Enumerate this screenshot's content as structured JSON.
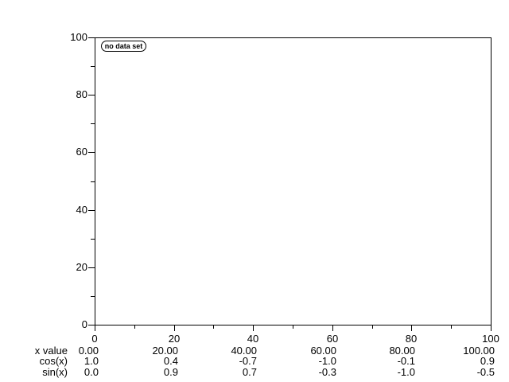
{
  "colors": {
    "foreground": "#000000",
    "background": "#ffffff"
  },
  "chart_data": {
    "type": "line",
    "title": "",
    "xlabel": "",
    "ylabel": "",
    "xlim": [
      0,
      100
    ],
    "ylim": [
      0,
      100
    ],
    "grid": false,
    "series": [],
    "legend": [
      "no data set"
    ],
    "legend_position": "top-left-inside",
    "x_major_ticks": [
      0,
      20,
      40,
      60,
      80,
      100
    ],
    "x_minor_ticks": [
      10,
      30,
      50,
      70,
      90
    ],
    "y_major_ticks": [
      0,
      20,
      40,
      60,
      80,
      100
    ],
    "y_minor_ticks": [
      10,
      30,
      50,
      70,
      90
    ],
    "x_tick_labels": [
      "0",
      "20",
      "40",
      "60",
      "80",
      "100"
    ],
    "y_tick_labels": [
      "0",
      "20",
      "40",
      "60",
      "80",
      "100"
    ],
    "value_table": {
      "columns_x": [
        0,
        20,
        40,
        60,
        80,
        100
      ],
      "rows": [
        {
          "label": "x value",
          "values": [
            "0.00",
            "20.00",
            "40.00",
            "60.00",
            "80.00",
            "100.00"
          ]
        },
        {
          "label": "cos(x)",
          "values": [
            "1.0",
            "0.4",
            "-0.7",
            "-1.0",
            "-0.1",
            "0.9"
          ]
        },
        {
          "label": "sin(x)",
          "values": [
            "0.0",
            "0.9",
            "0.7",
            "-0.3",
            "-1.0",
            "-0.5"
          ]
        }
      ]
    }
  }
}
